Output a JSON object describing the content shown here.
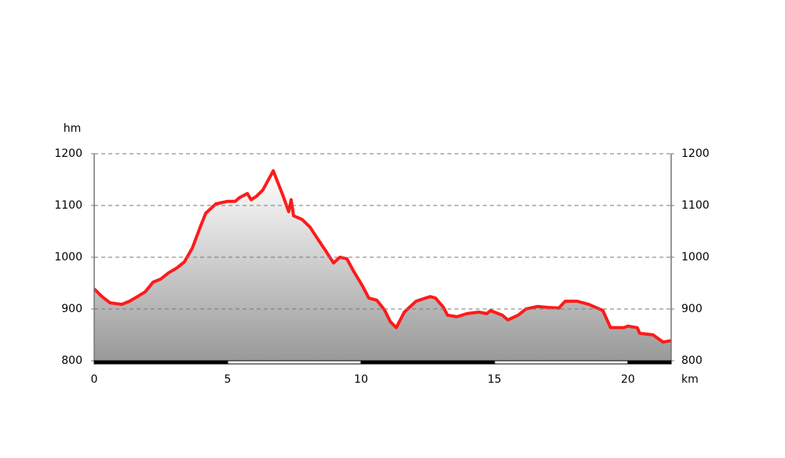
{
  "chart_data": {
    "type": "area",
    "y_label": "hm",
    "x_label": "km",
    "x": [
      0,
      0.29,
      0.59,
      1.03,
      1.32,
      1.62,
      1.91,
      2.21,
      2.5,
      2.79,
      3.09,
      3.38,
      3.68,
      3.97,
      4.18,
      4.56,
      5.0,
      5.29,
      5.44,
      5.74,
      5.88,
      6.09,
      6.32,
      6.71,
      7.06,
      7.29,
      7.38,
      7.47,
      7.79,
      8.09,
      8.38,
      8.68,
      8.97,
      9.21,
      9.47,
      9.71,
      10.06,
      10.29,
      10.59,
      10.88,
      11.09,
      11.32,
      11.62,
      12.06,
      12.59,
      12.79,
      13.09,
      13.24,
      13.59,
      13.97,
      14.41,
      14.71,
      14.85,
      15.29,
      15.5,
      15.88,
      16.18,
      16.62,
      17.0,
      17.41,
      17.65,
      18.09,
      18.53,
      19.06,
      19.35,
      19.85,
      20.0,
      20.35,
      20.44,
      20.94,
      21.32,
      21.62
    ],
    "series": [
      {
        "color": "#ff1a1a",
        "values": [
          939,
          924,
          912,
          909,
          915,
          924,
          933,
          952,
          958,
          970,
          979,
          991,
          1018,
          1058,
          1085,
          1103,
          1108,
          1108,
          1115,
          1123,
          1111,
          1118,
          1130,
          1167,
          1121,
          1088,
          1111,
          1080,
          1073,
          1058,
          1035,
          1012,
          989,
          1000,
          997,
          974,
          944,
          921,
          917,
          898,
          876,
          864,
          894,
          915,
          924,
          921,
          903,
          888,
          885,
          891,
          894,
          891,
          897,
          888,
          879,
          888,
          900,
          905,
          903,
          902,
          915,
          915,
          909,
          897,
          864,
          864,
          867,
          864,
          853,
          850,
          836,
          839
        ]
      }
    ],
    "xlim": [
      0,
      21.62
    ],
    "xticks": [
      0,
      5,
      10,
      15,
      20
    ],
    "ylim": [
      800,
      1200
    ],
    "yticks": [
      800,
      900,
      1000,
      1100,
      1200
    ],
    "y2lim": [
      800,
      1200
    ],
    "y2ticks": [
      800,
      900,
      1000,
      1100,
      1200
    ],
    "grid": true
  }
}
